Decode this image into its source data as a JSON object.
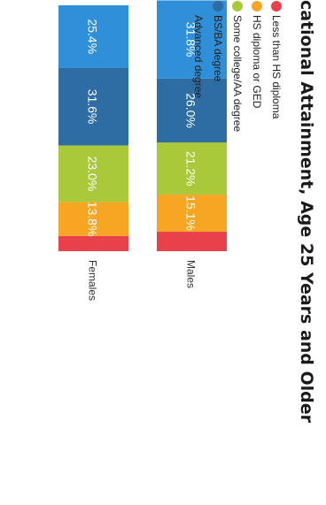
{
  "chart_data": {
    "type": "bar",
    "stacked": true,
    "orientation": "rotated-90-clockwise",
    "title": "cational Attainment, Age 25 Years and Older",
    "categories": [
      "Females",
      "Males"
    ],
    "series": [
      {
        "name": "Less than HS diploma",
        "values": [
          6.2,
          7.9
        ],
        "labels": [
          "",
          ""
        ],
        "color": "#e8414b"
      },
      {
        "name": "HS diploma or GED",
        "values": [
          13.8,
          15.1
        ],
        "labels": [
          "13.8%",
          "15.1%"
        ],
        "color": "#f6a623"
      },
      {
        "name": "Some college/AA degree",
        "values": [
          23.0,
          21.2
        ],
        "labels": [
          "23.0%",
          "21.2%"
        ],
        "color": "#a9c93a"
      },
      {
        "name": "BS/BA degree",
        "values": [
          31.6,
          26.0
        ],
        "labels": [
          "31.6%",
          "26.0%"
        ],
        "color": "#2e6da4"
      },
      {
        "name": "Advanced degree",
        "values": [
          25.4,
          31.8
        ],
        "labels": [
          "25.4%",
          "31.8%"
        ],
        "color": "#2f8fd8"
      }
    ],
    "ylim": [
      0,
      100
    ],
    "legend_position": "right"
  }
}
